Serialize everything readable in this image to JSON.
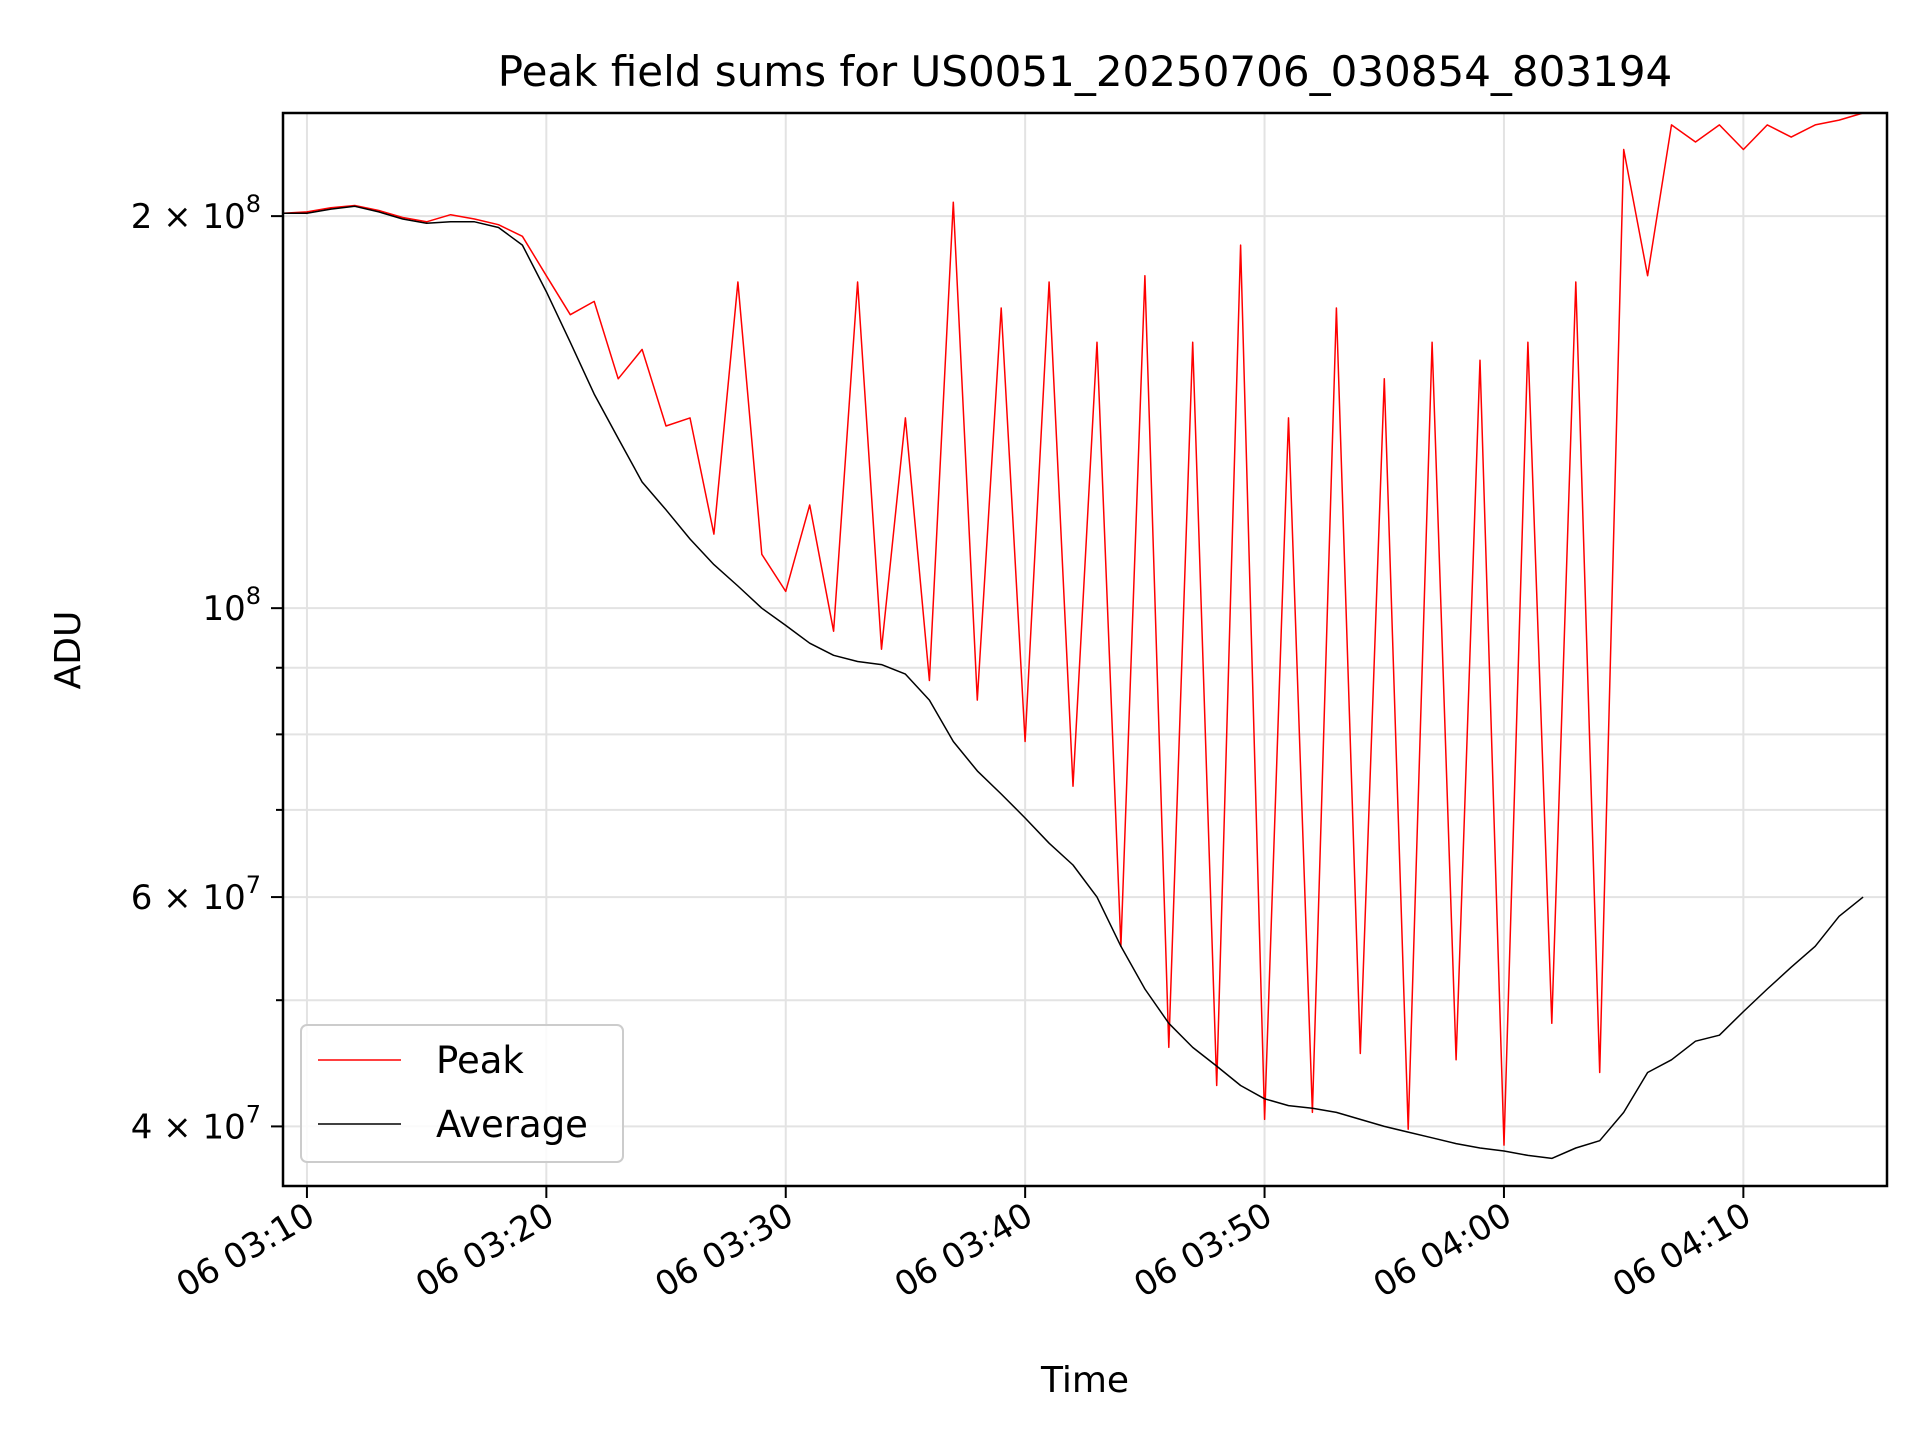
{
  "chart_data": {
    "type": "line",
    "title": "Peak field sums for US0051_20250706_030854_803194",
    "xlabel": "Time",
    "ylabel": "ADU",
    "yscale": "log",
    "x_range": [
      "06 03:09",
      "06 04:16"
    ],
    "ylim": [
      36000000,
      240000000
    ],
    "x_ticks": [
      "06 03:10",
      "06 03:20",
      "06 03:30",
      "06 03:40",
      "06 03:50",
      "06 04:00",
      "06 04:10"
    ],
    "y_ticks": [
      {
        "value": 40000000,
        "label_mantissa": "4 × 10",
        "label_exp": "7"
      },
      {
        "value": 60000000,
        "label_mantissa": "6 × 10",
        "label_exp": "7"
      },
      {
        "value": 100000000,
        "label_mantissa": "10",
        "label_exp": "8"
      },
      {
        "value": 200000000,
        "label_mantissa": "2 × 10",
        "label_exp": "8"
      }
    ],
    "y_minor_ticks": [
      50000000,
      70000000,
      80000000,
      90000000
    ],
    "grid": true,
    "legend": "lower-left",
    "series": [
      {
        "name": "Peak",
        "color": "#ff0000",
        "points": [
          [
            "06 03:09",
            201000000
          ],
          [
            "06 03:10",
            201500000
          ],
          [
            "06 03:11",
            203000000
          ],
          [
            "06 03:12",
            203800000
          ],
          [
            "06 03:13",
            202000000
          ],
          [
            "06 03:14",
            199500000
          ],
          [
            "06 03:15",
            198000000
          ],
          [
            "06 03:16",
            200500000
          ],
          [
            "06 03:17",
            199000000
          ],
          [
            "06 03:18",
            197000000
          ],
          [
            "06 03:19",
            193000000
          ],
          [
            "06 03:20",
            180000000
          ],
          [
            "06 03:21",
            168000000
          ],
          [
            "06 03:22",
            172000000
          ],
          [
            "06 03:23",
            150000000
          ],
          [
            "06 03:24",
            158000000
          ],
          [
            "06 03:25",
            138000000
          ],
          [
            "06 03:26",
            140000000
          ],
          [
            "06 03:27",
            114000000
          ],
          [
            "06 03:28",
            178000000
          ],
          [
            "06 03:29",
            110000000
          ],
          [
            "06 03:30",
            103000000
          ],
          [
            "06 03:31",
            120000000
          ],
          [
            "06 03:32",
            96000000
          ],
          [
            "06 03:33",
            178000000
          ],
          [
            "06 03:34",
            93000000
          ],
          [
            "06 03:35",
            140000000
          ],
          [
            "06 03:36",
            88000000
          ],
          [
            "06 03:37",
            205000000
          ],
          [
            "06 03:38",
            85000000
          ],
          [
            "06 03:39",
            170000000
          ],
          [
            "06 03:40",
            79000000
          ],
          [
            "06 03:41",
            178000000
          ],
          [
            "06 03:42",
            73000000
          ],
          [
            "06 03:43",
            160000000
          ],
          [
            "06 03:44",
            55000000
          ],
          [
            "06 03:45",
            180000000
          ],
          [
            "06 03:46",
            46000000
          ],
          [
            "06 03:47",
            160000000
          ],
          [
            "06 03:48",
            43000000
          ],
          [
            "06 03:49",
            190000000
          ],
          [
            "06 03:50",
            40500000
          ],
          [
            "06 03:51",
            140000000
          ],
          [
            "06 03:52",
            41000000
          ],
          [
            "06 03:53",
            170000000
          ],
          [
            "06 03:54",
            45500000
          ],
          [
            "06 03:55",
            150000000
          ],
          [
            "06 03:56",
            39800000
          ],
          [
            "06 03:57",
            160000000
          ],
          [
            "06 03:58",
            45000000
          ],
          [
            "06 03:59",
            155000000
          ],
          [
            "06 04:00",
            38700000
          ],
          [
            "06 04:01",
            160000000
          ],
          [
            "06 04:02",
            48000000
          ],
          [
            "06 04:03",
            178000000
          ],
          [
            "06 04:04",
            44000000
          ],
          [
            "06 04:05",
            225000000
          ],
          [
            "06 04:06",
            180000000
          ],
          [
            "06 04:07",
            235000000
          ],
          [
            "06 04:08",
            228000000
          ],
          [
            "06 04:09",
            235000000
          ],
          [
            "06 04:10",
            225000000
          ],
          [
            "06 04:11",
            235000000
          ],
          [
            "06 04:12",
            230000000
          ],
          [
            "06 04:13",
            235000000
          ],
          [
            "06 04:14",
            237000000
          ],
          [
            "06 04:15",
            240000000
          ]
        ]
      },
      {
        "name": "Average",
        "color": "#000000",
        "points": [
          [
            "06 03:09",
            201000000
          ],
          [
            "06 03:10",
            201000000
          ],
          [
            "06 03:11",
            202500000
          ],
          [
            "06 03:12",
            203500000
          ],
          [
            "06 03:13",
            201500000
          ],
          [
            "06 03:14",
            199000000
          ],
          [
            "06 03:15",
            197500000
          ],
          [
            "06 03:16",
            198000000
          ],
          [
            "06 03:17",
            198000000
          ],
          [
            "06 03:18",
            196000000
          ],
          [
            "06 03:19",
            190000000
          ],
          [
            "06 03:20",
            175000000
          ],
          [
            "06 03:21",
            160000000
          ],
          [
            "06 03:22",
            146000000
          ],
          [
            "06 03:23",
            135000000
          ],
          [
            "06 03:24",
            125000000
          ],
          [
            "06 03:25",
            119000000
          ],
          [
            "06 03:26",
            113000000
          ],
          [
            "06 03:27",
            108000000
          ],
          [
            "06 03:28",
            104000000
          ],
          [
            "06 03:29",
            100000000
          ],
          [
            "06 03:30",
            97000000
          ],
          [
            "06 03:31",
            94000000
          ],
          [
            "06 03:32",
            92000000
          ],
          [
            "06 03:33",
            91000000
          ],
          [
            "06 03:34",
            90500000
          ],
          [
            "06 03:35",
            89000000
          ],
          [
            "06 03:36",
            85000000
          ],
          [
            "06 03:37",
            79000000
          ],
          [
            "06 03:38",
            75000000
          ],
          [
            "06 03:39",
            72000000
          ],
          [
            "06 03:40",
            69000000
          ],
          [
            "06 03:41",
            66000000
          ],
          [
            "06 03:42",
            63500000
          ],
          [
            "06 03:43",
            60000000
          ],
          [
            "06 03:44",
            55000000
          ],
          [
            "06 03:45",
            51000000
          ],
          [
            "06 03:46",
            48000000
          ],
          [
            "06 03:47",
            46000000
          ],
          [
            "06 03:48",
            44500000
          ],
          [
            "06 03:49",
            43000000
          ],
          [
            "06 03:50",
            42000000
          ],
          [
            "06 03:51",
            41500000
          ],
          [
            "06 03:52",
            41300000
          ],
          [
            "06 03:53",
            41000000
          ],
          [
            "06 03:54",
            40500000
          ],
          [
            "06 03:55",
            40000000
          ],
          [
            "06 03:56",
            39600000
          ],
          [
            "06 03:57",
            39200000
          ],
          [
            "06 03:58",
            38800000
          ],
          [
            "06 03:59",
            38500000
          ],
          [
            "06 04:00",
            38300000
          ],
          [
            "06 04:01",
            38000000
          ],
          [
            "06 04:02",
            37800000
          ],
          [
            "06 04:03",
            38500000
          ],
          [
            "06 04:04",
            39000000
          ],
          [
            "06 04:05",
            41000000
          ],
          [
            "06 04:06",
            44000000
          ],
          [
            "06 04:07",
            45000000
          ],
          [
            "06 04:08",
            46500000
          ],
          [
            "06 04:09",
            47000000
          ],
          [
            "06 04:10",
            49000000
          ],
          [
            "06 04:11",
            51000000
          ],
          [
            "06 04:12",
            53000000
          ],
          [
            "06 04:13",
            55000000
          ],
          [
            "06 04:14",
            58000000
          ],
          [
            "06 04:15",
            60000000
          ]
        ]
      }
    ]
  }
}
